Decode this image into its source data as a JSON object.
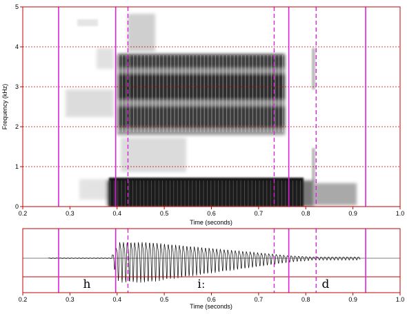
{
  "spectrogram": {
    "y_axis_label": "Frequency (kHz)",
    "y_ticks": [
      "0",
      "1",
      "2",
      "3",
      "4",
      "5"
    ],
    "x_ticks": [
      "0.2",
      "0.3",
      "0.4",
      "0.5",
      "0.6",
      "0.7",
      "0.8",
      "0.9",
      "1.0"
    ],
    "x_axis_label": "Time (seconds)"
  },
  "waveform": {
    "x_ticks": [
      "0.2",
      "0.3",
      "0.4",
      "0.5",
      "0.6",
      "0.7",
      "0.8",
      "0.9",
      "1.0"
    ],
    "x_axis_label": "Time (seconds)"
  },
  "segments": [
    {
      "label": "h"
    },
    {
      "label": "iː"
    },
    {
      "label": "d"
    }
  ],
  "colors": {
    "frame": "#c00000",
    "boundary": "#e020e0",
    "grid": "#c00000",
    "ink": "#000000"
  }
}
